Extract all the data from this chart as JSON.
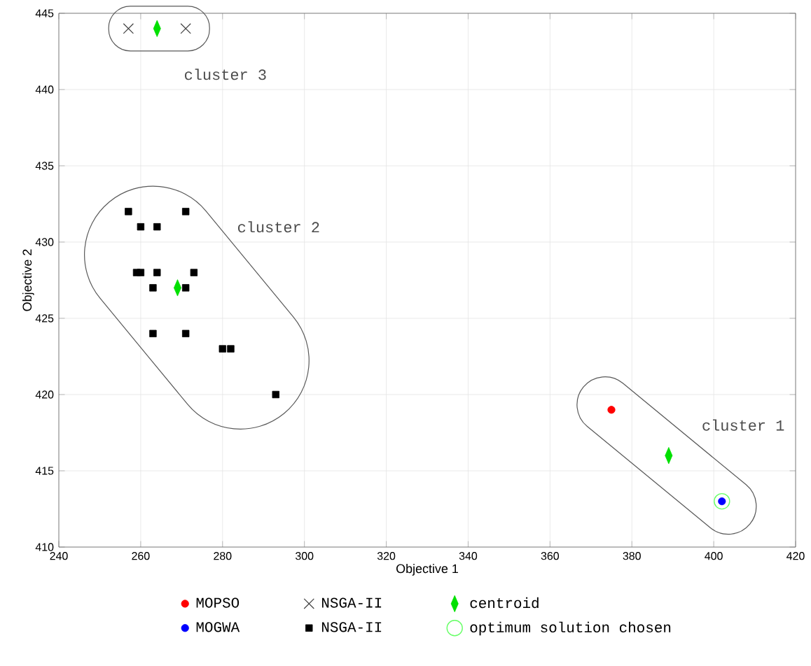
{
  "chart_data": {
    "type": "scatter",
    "xlabel": "Objective 1",
    "ylabel": "Objective 2",
    "xlim": [
      240,
      420
    ],
    "ylim": [
      410,
      445
    ],
    "xticks": [
      240,
      260,
      280,
      300,
      320,
      340,
      360,
      380,
      400,
      420
    ],
    "yticks": [
      410,
      415,
      420,
      425,
      430,
      435,
      440,
      445
    ],
    "grid": true,
    "legend": "bottom",
    "series": [
      {
        "name": "MOPSO",
        "color": "#ff0000",
        "marker": "circle",
        "x": [
          375
        ],
        "values": [
          419
        ]
      },
      {
        "name": "NSGA-II",
        "color": "#404040",
        "marker": "cross",
        "x": [
          257,
          271
        ],
        "values": [
          444,
          444
        ]
      },
      {
        "name": "centroid",
        "color": "#00e000",
        "marker": "diamond",
        "x": [
          389,
          269,
          264
        ],
        "values": [
          416,
          427,
          444
        ]
      },
      {
        "name": "MOGWA",
        "color": "#0000ff",
        "marker": "circle",
        "x": [
          402
        ],
        "values": [
          413
        ]
      },
      {
        "name": "NSGA-II",
        "color": "#000000",
        "marker": "square",
        "x": [
          257,
          260,
          264,
          271,
          259,
          260,
          264,
          273,
          263,
          271,
          263,
          271,
          280,
          282,
          293
        ],
        "values": [
          432,
          431,
          431,
          432,
          428,
          428,
          428,
          428,
          427,
          427,
          424,
          424,
          423,
          423,
          420
        ]
      },
      {
        "name": "optimum solution chosen",
        "color": "#66ff66",
        "marker": "circle",
        "x": [
          402
        ],
        "values": [
          413
        ]
      }
    ],
    "annotations": [
      "cluster 1",
      "cluster 2",
      "cluster 3"
    ]
  }
}
